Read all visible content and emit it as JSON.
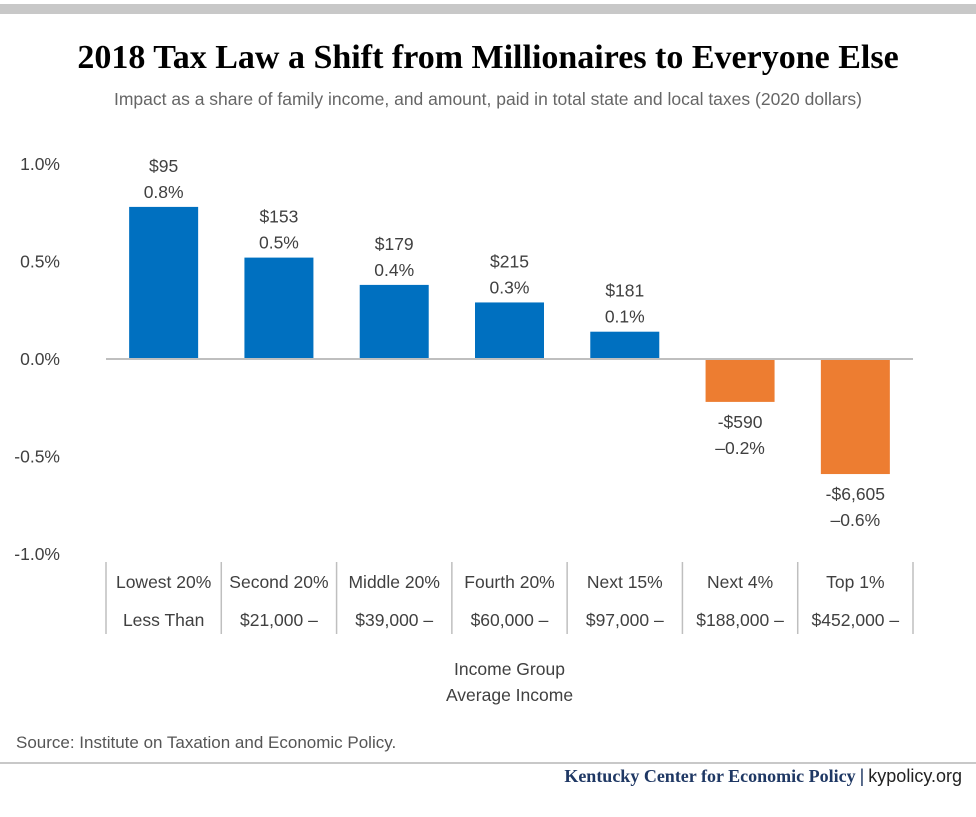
{
  "header": {
    "title": "2018 Tax Law a Shift from Millionaires to Everyone Else",
    "subtitle": "Impact as a share of family income, and amount, paid in total state and local taxes (2020 dollars)"
  },
  "chart_data": {
    "type": "bar",
    "categories": [
      "Lowest 20%",
      "Second 20%",
      "Middle 20%",
      "Fourth 20%",
      "Next 15%",
      "Next 4%",
      "Top 1%"
    ],
    "average_income_labels": [
      "Less Than",
      "$21,000 –",
      "$39,000 –",
      "$60,000 –",
      "$97,000 –",
      "$188,000 –",
      "$452,000 –"
    ],
    "values": [
      0.78,
      0.52,
      0.38,
      0.29,
      0.14,
      -0.22,
      -0.59
    ],
    "amount_labels": [
      "$95",
      "$153",
      "$179",
      "$215",
      "$181",
      "-$590",
      "-$6,605"
    ],
    "percent_labels": [
      "0.8%",
      "0.5%",
      "0.4%",
      "0.3%",
      "0.1%",
      "–0.2%",
      "–0.6%"
    ],
    "ylim": [
      -1.0,
      1.0
    ],
    "y_ticks": [
      1.0,
      0.5,
      0.0,
      -0.5,
      -1.0
    ],
    "y_tick_labels": [
      "1.0%",
      "0.5%",
      "0.0%",
      "-0.5%",
      "-1.0%"
    ],
    "xlabel_lines": [
      "Income Group",
      "Average Income"
    ],
    "colors": {
      "positive": "#0070c0",
      "negative": "#ed7d31",
      "axis": "#bfbfbf",
      "text": "#404040"
    },
    "grid": false
  },
  "footer": {
    "source": "Source: Institute on Taxation and Economic Policy.",
    "org": "Kentucky Center for Economic Policy",
    "separator": "|",
    "site": "kypolicy.org"
  }
}
